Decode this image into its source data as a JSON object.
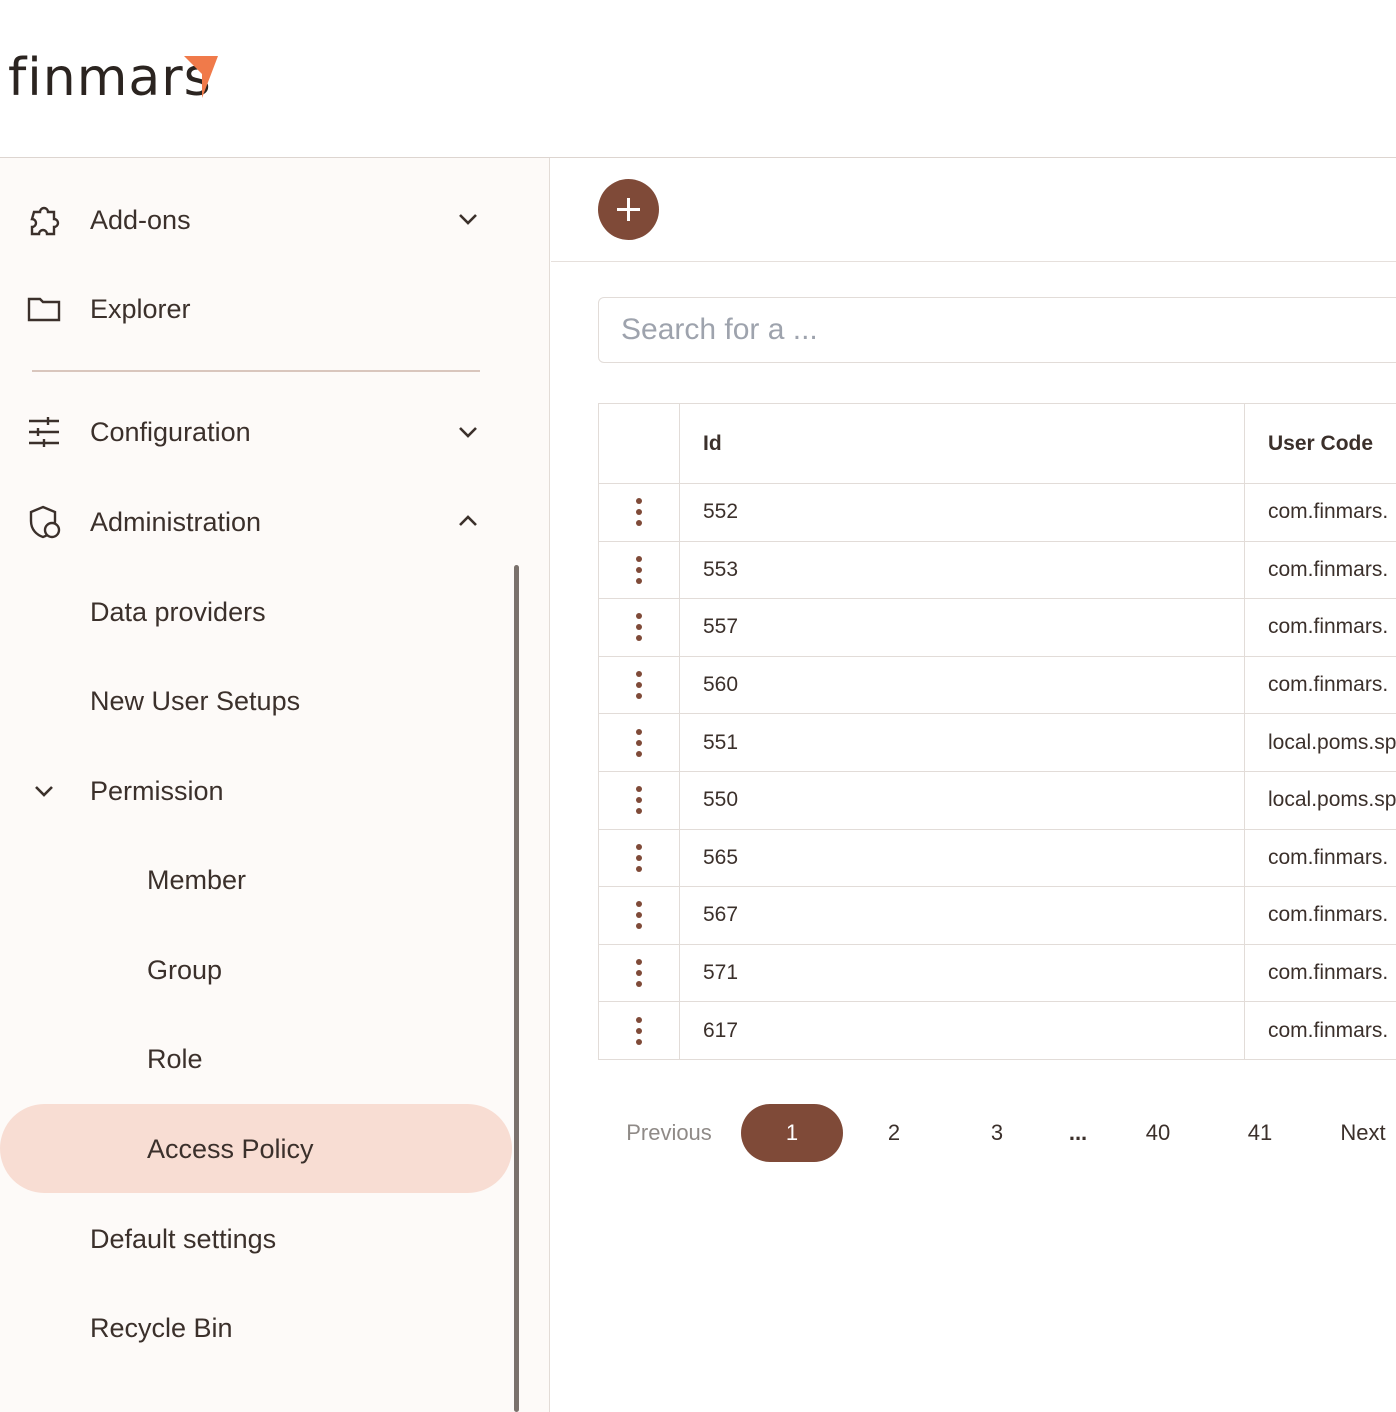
{
  "header": {
    "logo": "finmars"
  },
  "sidebar": {
    "items": [
      "Add-ons",
      "Explorer",
      "Configuration",
      "Administration",
      "Data providers",
      "New User Setups",
      "Permission",
      "Member",
      "Group",
      "Role",
      "Access Policy",
      "Default settings",
      "Recycle Bin"
    ]
  },
  "search": {
    "placeholder": "Search for a ..."
  },
  "table": {
    "headers": [
      "Id",
      "User Code"
    ],
    "rows": [
      [
        "552",
        "com.finmars."
      ],
      [
        "553",
        "com.finmars."
      ],
      [
        "557",
        "com.finmars."
      ],
      [
        "560",
        "com.finmars."
      ],
      [
        "551",
        "local.poms.sp"
      ],
      [
        "550",
        "local.poms.sp"
      ],
      [
        "565",
        "com.finmars."
      ],
      [
        "567",
        "com.finmars."
      ],
      [
        "571",
        "com.finmars."
      ],
      [
        "617",
        "com.finmars."
      ]
    ]
  },
  "pagination": {
    "previous": "Previous",
    "pages": [
      "1",
      "2",
      "3",
      "...",
      "40",
      "41"
    ],
    "next": "Next"
  }
}
